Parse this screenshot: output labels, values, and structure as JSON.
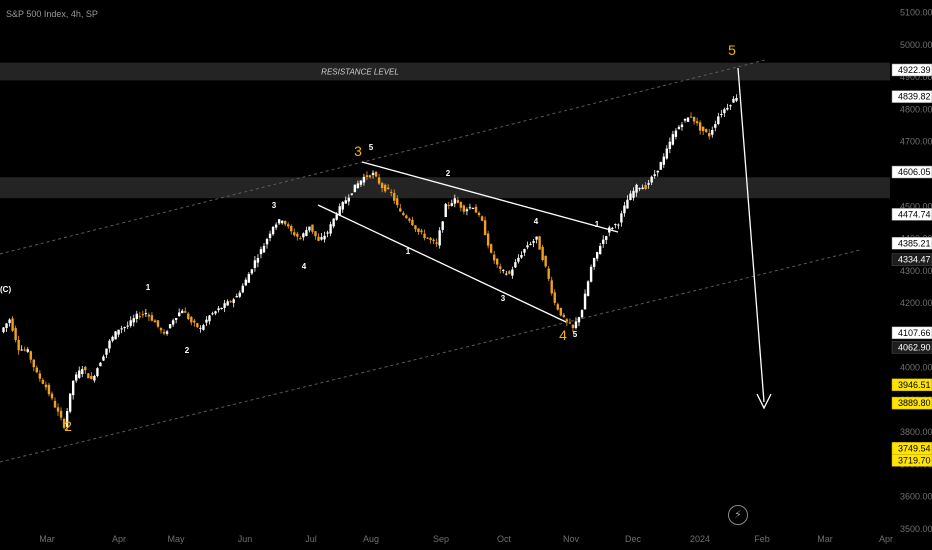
{
  "header": {
    "title": "S&P 500 Index, 4h, SP"
  },
  "colors": {
    "bull": "#ffffff",
    "bear": "#f0a020",
    "wave_big": "#f0b400",
    "line": "#ffffff",
    "zone": "#2a2a2a",
    "channel": "#5a5a5a"
  },
  "chart_data": {
    "type": "candlestick",
    "x_tick_labels": [
      "Mar",
      "Apr",
      "May",
      "Jun",
      "Jul",
      "Aug",
      "Sep",
      "Oct",
      "Nov",
      "Dec",
      "2024",
      "Feb",
      "Mar",
      "Apr"
    ],
    "y_tick_labels": [
      "5100.00",
      "5000.00",
      "4900.00",
      "4800.00",
      "4700.00",
      "4600.00",
      "4500.00",
      "4400.00",
      "4300.00",
      "4200.00",
      "4100.00",
      "4000.00",
      "3900.00",
      "3800.00",
      "3700.00",
      "3600.00",
      "3500.00"
    ],
    "ylim": [
      3450,
      5130
    ],
    "price_tags": [
      {
        "value": 4922.39,
        "label": "4922.39",
        "style": "light"
      },
      {
        "value": 4839.82,
        "label": "4839.82",
        "style": "light"
      },
      {
        "value": 4606.05,
        "label": "4606.05",
        "style": "light"
      },
      {
        "value": 4474.74,
        "label": "4474.74",
        "style": "light"
      },
      {
        "value": 4385.21,
        "label": "4385.21",
        "style": "light"
      },
      {
        "value": 4334.47,
        "label": "4334.47",
        "style": "dark"
      },
      {
        "value": 4107.66,
        "label": "4107.66",
        "style": "light"
      },
      {
        "value": 4062.9,
        "label": "4062.90",
        "style": "dark"
      },
      {
        "value": 3946.51,
        "label": "3946.51",
        "style": "yellow"
      },
      {
        "value": 3889.8,
        "label": "3889.80",
        "style": "yellow"
      },
      {
        "value": 3749.54,
        "label": "3749.54",
        "style": "yellow"
      },
      {
        "value": 3719.7,
        "label": "3719.70",
        "style": "yellow"
      }
    ],
    "zones": [
      {
        "label": "RESISTANCE LEVEL",
        "y_top": 4945,
        "y_bottom": 4890
      },
      {
        "label": "",
        "y_top": 4590,
        "y_bottom": 4525
      }
    ],
    "wave_labels_primary": [
      "2",
      "3",
      "4",
      "5",
      "(C)"
    ],
    "wave_labels_minor": [
      "1",
      "2",
      "3",
      "4",
      "5",
      "1",
      "2",
      "3",
      "4",
      "5",
      "1"
    ],
    "path_points": [
      [
        4110,
        4150,
        4060,
        4050,
        3980,
        3940,
        3880,
        3820,
        3960,
        4000,
        3960,
        4020,
        4080,
        4120,
        4130,
        4160,
        4170,
        4140,
        4100,
        4150,
        4180,
        4140,
        4120,
        4160,
        4180,
        4200,
        4220,
        4270,
        4330,
        4380,
        4440,
        4460,
        4420,
        4400,
        4440,
        4390,
        4420,
        4480,
        4520,
        4560,
        4590,
        4600,
        4560,
        4540,
        4480,
        4460,
        4420,
        4400,
        4380,
        4500,
        4520,
        4490,
        4500,
        4450,
        4350,
        4300,
        4290,
        4340,
        4380,
        4400,
        4310,
        4200,
        4150,
        4120,
        4180,
        4310,
        4380,
        4430,
        4450,
        4520,
        4560,
        4560,
        4600,
        4650,
        4720,
        4760,
        4780,
        4740,
        4720,
        4780,
        4810,
        4840
      ]
    ]
  },
  "ui": {
    "lightning_icon": "⚡"
  }
}
